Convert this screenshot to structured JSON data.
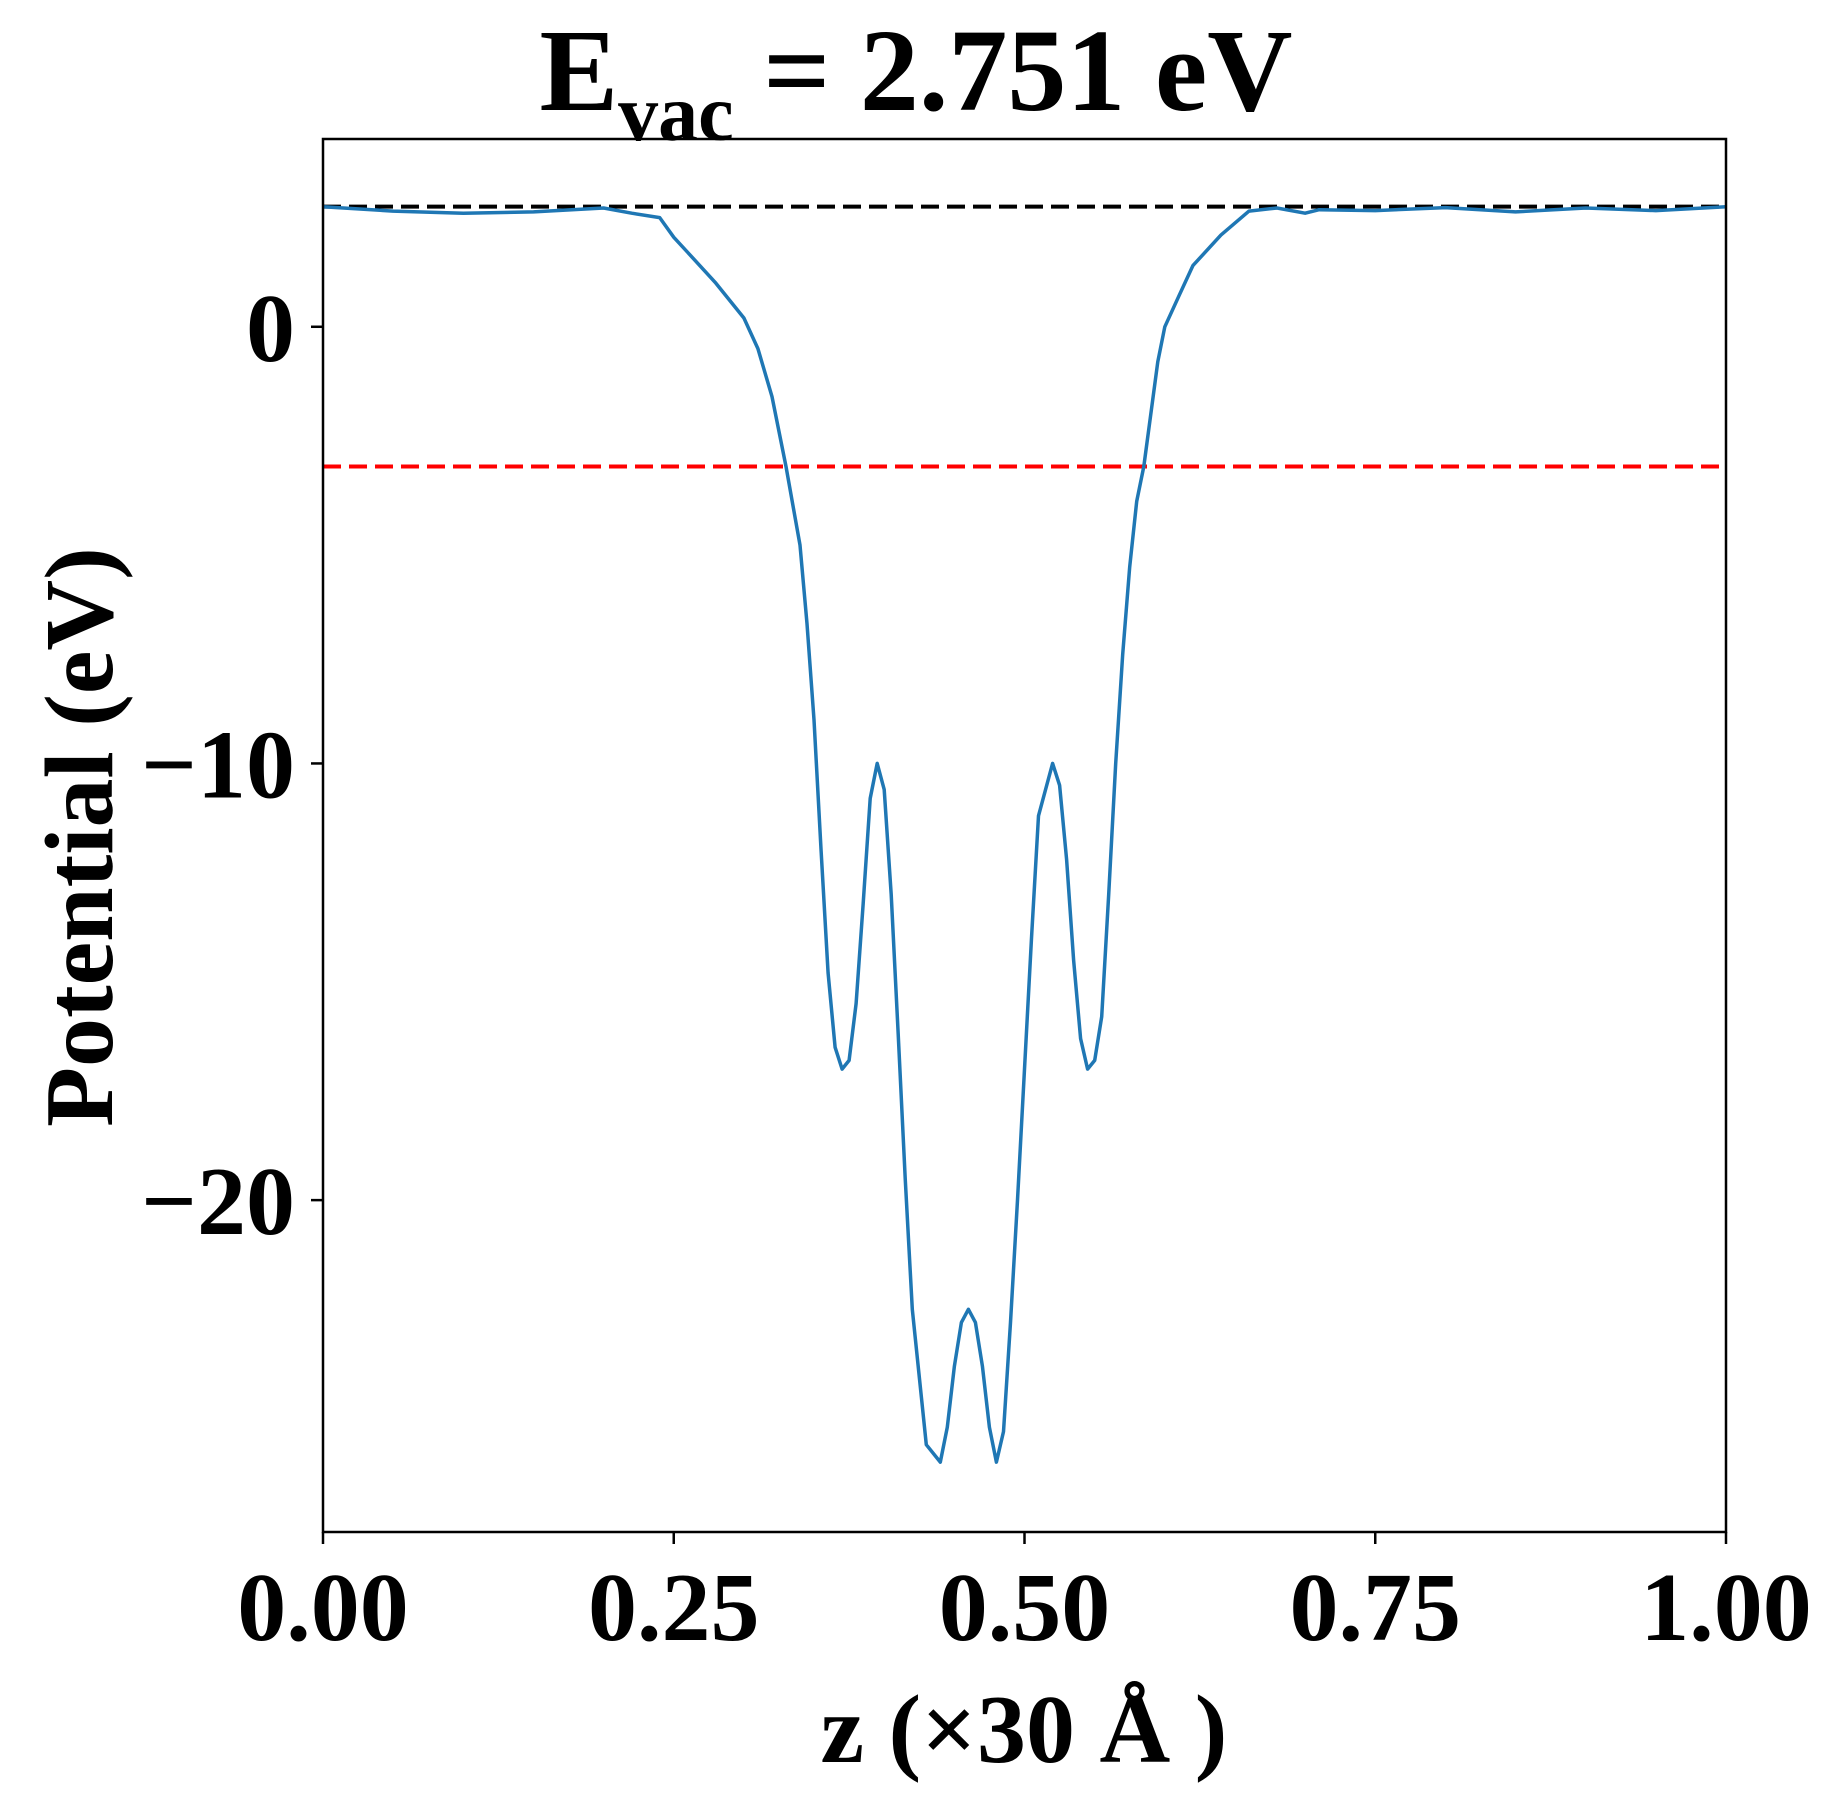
{
  "chart_data": {
    "type": "line",
    "title": {
      "main": "E",
      "subscript": "vac",
      "rest": " = 2.751 eV"
    },
    "xlabel": "z (×30 Å )",
    "ylabel": "Potential (eV)",
    "xlim": [
      0.0,
      1.0
    ],
    "ylim": [
      -27.6,
      4.3
    ],
    "x_ticks": [
      0.0,
      0.25,
      0.5,
      0.75,
      1.0
    ],
    "x_tick_labels": [
      "0.00",
      "0.25",
      "0.50",
      "0.75",
      "1.00"
    ],
    "y_ticks": [
      0,
      -10,
      -20
    ],
    "y_tick_labels": [
      "0",
      "−10",
      "−20"
    ],
    "grid": false,
    "legend": "none",
    "reference_lines": [
      {
        "y": 2.751,
        "style": "dashed",
        "color": "#000000"
      },
      {
        "y": -3.2,
        "style": "dashed",
        "color": "#ff0000"
      }
    ],
    "series": [
      {
        "color": "#1f77b4",
        "x": [
          0.0,
          0.05,
          0.1,
          0.15,
          0.2,
          0.22,
          0.24,
          0.25,
          0.26,
          0.28,
          0.3,
          0.31,
          0.32,
          0.33,
          0.34,
          0.345,
          0.35,
          0.355,
          0.36,
          0.365,
          0.37,
          0.375,
          0.38,
          0.385,
          0.39,
          0.395,
          0.4,
          0.405,
          0.41,
          0.415,
          0.42,
          0.43,
          0.44,
          0.445,
          0.45,
          0.455,
          0.46,
          0.465,
          0.47,
          0.475,
          0.48,
          0.485,
          0.49,
          0.495,
          0.5,
          0.505,
          0.51,
          0.52,
          0.525,
          0.53,
          0.535,
          0.54,
          0.545,
          0.55,
          0.555,
          0.56,
          0.565,
          0.57,
          0.575,
          0.58,
          0.585,
          0.59,
          0.595,
          0.6,
          0.61,
          0.62,
          0.64,
          0.66,
          0.68,
          0.7,
          0.71,
          0.75,
          0.8,
          0.85,
          0.9,
          0.95,
          1.0
        ],
        "y": [
          2.75,
          2.65,
          2.6,
          2.63,
          2.72,
          2.6,
          2.5,
          2.05,
          1.7,
          1.0,
          0.2,
          -0.5,
          -1.6,
          -3.2,
          -5.0,
          -6.8,
          -9.0,
          -12.0,
          -14.8,
          -16.5,
          -17.0,
          -16.8,
          -15.5,
          -13.2,
          -10.8,
          -10.0,
          -10.6,
          -13.0,
          -16.2,
          -19.5,
          -22.5,
          -25.6,
          -26.0,
          -25.2,
          -23.8,
          -22.8,
          -22.5,
          -22.8,
          -23.8,
          -25.2,
          -26.0,
          -25.3,
          -22.8,
          -20.0,
          -17.0,
          -14.0,
          -11.2,
          -10.0,
          -10.5,
          -12.2,
          -14.5,
          -16.3,
          -17.0,
          -16.8,
          -15.8,
          -13.0,
          -10.0,
          -7.5,
          -5.5,
          -4.0,
          -3.2,
          -2.0,
          -0.8,
          0.0,
          0.7,
          1.4,
          2.1,
          2.65,
          2.72,
          2.6,
          2.68,
          2.66,
          2.73,
          2.63,
          2.72,
          2.66,
          2.75
        ]
      }
    ]
  }
}
